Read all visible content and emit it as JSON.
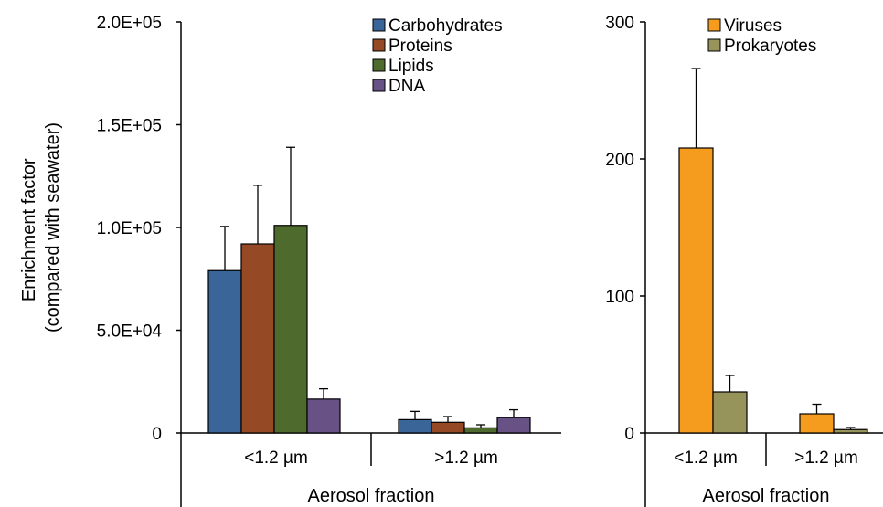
{
  "y_axis_title": [
    "Enrichment factor",
    "(compared with seawater)"
  ],
  "chart_data": [
    {
      "type": "bar",
      "categories": [
        "<1.2 µm",
        ">1.2 µm"
      ],
      "xlabel": "Aerosol fraction",
      "ylim": [
        0,
        200000
      ],
      "yticks": [
        "0",
        "5.0E+04",
        "1.0E+05",
        "1.5E+05",
        "2.0E+05"
      ],
      "ytick_values": [
        0,
        50000,
        100000,
        150000,
        200000
      ],
      "legend_position": "top-right",
      "series": [
        {
          "name": "Carbohydrates",
          "color": "#3a6598",
          "values": [
            79000,
            6500
          ],
          "errors": [
            21500,
            4000
          ]
        },
        {
          "name": "Proteins",
          "color": "#954924",
          "values": [
            92000,
            5200
          ],
          "errors": [
            28500,
            2800
          ]
        },
        {
          "name": "Lipids",
          "color": "#4e6a2c",
          "values": [
            101000,
            2500
          ],
          "errors": [
            38000,
            1500
          ]
        },
        {
          "name": "DNA",
          "color": "#685285",
          "values": [
            16500,
            7500
          ],
          "errors": [
            5000,
            3800
          ]
        }
      ]
    },
    {
      "type": "bar",
      "categories": [
        "<1.2 µm",
        ">1.2 µm"
      ],
      "xlabel": "Aerosol fraction",
      "ylim": [
        0,
        300
      ],
      "yticks": [
        "0",
        "100",
        "200",
        "300"
      ],
      "ytick_values": [
        0,
        100,
        200,
        300
      ],
      "legend_position": "top-right",
      "series": [
        {
          "name": "Viruses",
          "color": "#f59c1e",
          "values": [
            208,
            14
          ],
          "errors": [
            58,
            7
          ]
        },
        {
          "name": "Prokaryotes",
          "color": "#96935b",
          "values": [
            30,
            2.5
          ],
          "errors": [
            12,
            1.5
          ]
        }
      ]
    }
  ]
}
